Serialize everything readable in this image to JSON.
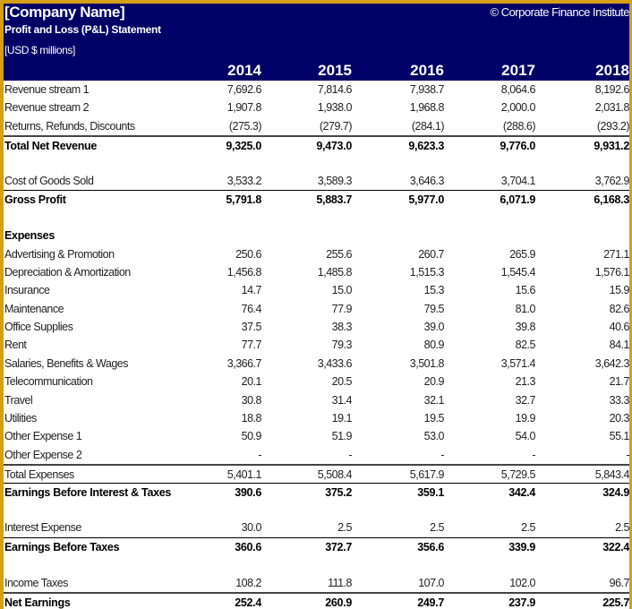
{
  "header": {
    "company": "[Company Name]",
    "copyright": "© Corporate Finance Institute",
    "title": "Profit and Loss (P&L) Statement",
    "units": "[USD $ millions]",
    "years": [
      "2014",
      "2015",
      "2016",
      "2017",
      "2018"
    ]
  },
  "colors": {
    "header_bg": "#000066",
    "border": "#d4a017"
  },
  "rows": [
    {
      "label": "Revenue stream 1",
      "values": [
        "7,692.6",
        "7,814.6",
        "7,938.7",
        "8,064.6",
        "8,192.6"
      ]
    },
    {
      "label": "Revenue stream 2",
      "values": [
        "1,907.8",
        "1,938.0",
        "1,968.8",
        "2,000.0",
        "2,031.8"
      ]
    },
    {
      "label": "Returns, Refunds, Discounts",
      "values": [
        "(275.3)",
        "(279.7)",
        "(284.1)",
        "(288.6)",
        "(293.2)"
      ]
    },
    {
      "label": "Total Net Revenue",
      "values": [
        "9,325.0",
        "9,473.0",
        "9,623.3",
        "9,776.0",
        "9,931.2"
      ],
      "bold": true,
      "line": "double"
    },
    {
      "label": "",
      "values": []
    },
    {
      "label": "Cost of Goods Sold",
      "values": [
        "3,533.2",
        "3,589.3",
        "3,646.3",
        "3,704.1",
        "3,762.9"
      ]
    },
    {
      "label": "Gross Profit",
      "values": [
        "5,791.8",
        "5,883.7",
        "5,977.0",
        "6,071.9",
        "6,168.3"
      ],
      "bold": true,
      "line": "single"
    },
    {
      "label": "",
      "values": []
    },
    {
      "label": "Expenses",
      "values": [],
      "bold": true
    },
    {
      "label": "Advertising & Promotion",
      "values": [
        "250.6",
        "255.6",
        "260.7",
        "265.9",
        "271.1"
      ]
    },
    {
      "label": "Depreciation & Amortization",
      "values": [
        "1,456.8",
        "1,485.8",
        "1,515.3",
        "1,545.4",
        "1,576.1"
      ]
    },
    {
      "label": "Insurance",
      "values": [
        "14.7",
        "15.0",
        "15.3",
        "15.6",
        "15.9"
      ]
    },
    {
      "label": "Maintenance",
      "values": [
        "76.4",
        "77.9",
        "79.5",
        "81.0",
        "82.6"
      ]
    },
    {
      "label": "Office Supplies",
      "values": [
        "37.5",
        "38.3",
        "39.0",
        "39.8",
        "40.6"
      ]
    },
    {
      "label": "Rent",
      "values": [
        "77.7",
        "79.3",
        "80.9",
        "82.5",
        "84.1"
      ]
    },
    {
      "label": "Salaries, Benefits & Wages",
      "values": [
        "3,366.7",
        "3,433.6",
        "3,501.8",
        "3,571.4",
        "3,642.3"
      ]
    },
    {
      "label": "Telecommunication",
      "values": [
        "20.1",
        "20.5",
        "20.9",
        "21.3",
        "21.7"
      ]
    },
    {
      "label": "Travel",
      "values": [
        "30.8",
        "31.4",
        "32.1",
        "32.7",
        "33.3"
      ]
    },
    {
      "label": "Utilities",
      "values": [
        "18.8",
        "19.1",
        "19.5",
        "19.9",
        "20.3"
      ]
    },
    {
      "label": "Other Expense 1",
      "values": [
        "50.9",
        "51.9",
        "53.0",
        "54.0",
        "55.1"
      ]
    },
    {
      "label": "Other Expense 2",
      "values": [
        "-",
        "-",
        "-",
        "-",
        "-"
      ]
    },
    {
      "label": "Total Expenses",
      "values": [
        "5,401.1",
        "5,508.4",
        "5,617.9",
        "5,729.5",
        "5,843.4"
      ],
      "line": "double"
    },
    {
      "label": "Earnings Before Interest & Taxes",
      "values": [
        "390.6",
        "375.2",
        "359.1",
        "342.4",
        "324.9"
      ],
      "bold": true,
      "line": "single"
    },
    {
      "label": "",
      "values": []
    },
    {
      "label": "Interest Expense",
      "values": [
        "30.0",
        "2.5",
        "2.5",
        "2.5",
        "2.5"
      ]
    },
    {
      "label": "Earnings Before Taxes",
      "values": [
        "360.6",
        "372.7",
        "356.6",
        "339.9",
        "322.4"
      ],
      "bold": true,
      "line": "single"
    },
    {
      "label": "",
      "values": []
    },
    {
      "label": "Income Taxes",
      "values": [
        "108.2",
        "111.8",
        "107.0",
        "102.0",
        "96.7"
      ]
    },
    {
      "label": "Net Earnings",
      "values": [
        "252.4",
        "260.9",
        "249.7",
        "237.9",
        "225.7"
      ],
      "bold": true,
      "line": "double"
    }
  ]
}
